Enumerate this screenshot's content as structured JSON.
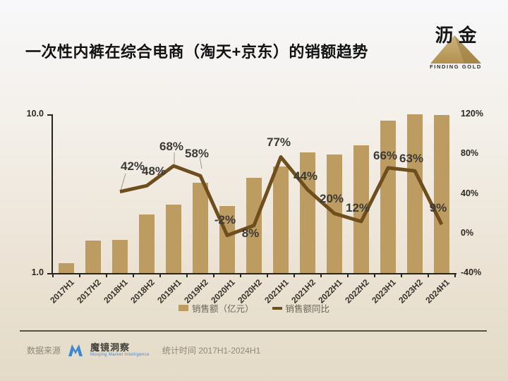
{
  "header": {
    "title": "一次性内裤在综合电商（淘天+京东）的销额趋势",
    "brand": {
      "name": "沥金",
      "tagline": "FINDING GOLD"
    }
  },
  "chart_data": {
    "type": "bar",
    "subtype": "bar+line combo",
    "title": "一次性内裤在综合电商（淘天+京东）的销额趋势",
    "categories": [
      "2017H1",
      "2017H2",
      "2018H1",
      "2018H2",
      "2019H1",
      "2019H2",
      "2020H1",
      "2020H2",
      "2021H1",
      "2021H2",
      "2022H1",
      "2022H2",
      "2023H1",
      "2023H2",
      "2024H1"
    ],
    "series": [
      {
        "name": "销售额（亿元）",
        "type": "bar",
        "axis": "left",
        "color": "#bd9c62",
        "values": [
          1.15,
          1.6,
          1.62,
          2.35,
          2.7,
          3.7,
          2.65,
          4.0,
          4.7,
          5.75,
          5.6,
          6.4,
          9.1,
          10.4,
          9.9
        ]
      },
      {
        "name": "销售额同比",
        "type": "line",
        "axis": "right",
        "color": "#6f4e1e",
        "values": [
          null,
          null,
          42,
          48,
          68,
          58,
          -2,
          8,
          77,
          44,
          20,
          12,
          66,
          63,
          9
        ],
        "labels": [
          null,
          null,
          "42%",
          "48%",
          "68%",
          "58%",
          "-2%",
          "8%",
          "77%",
          "44%",
          "20%",
          "12%",
          "66%",
          "63%",
          "9%"
        ]
      }
    ],
    "left_axis": {
      "scale": "log",
      "min": 1.0,
      "max": 10.0,
      "tick_labels": [
        "10.0",
        "1.0"
      ]
    },
    "right_axis": {
      "min": -40,
      "max": 120,
      "tick_labels": [
        "120%",
        "80%",
        "40%",
        "0%",
        "-40%"
      ]
    },
    "legend": [
      {
        "label": "销售额（亿元）",
        "swatch": "bar"
      },
      {
        "label": "销售额同比",
        "swatch": "line"
      }
    ],
    "grid": false,
    "legend_position": "bottom"
  },
  "footer": {
    "source_label": "数据来源",
    "source_brand": "魔镜洞察",
    "source_brand_sub": "Moojing Market Intelligence",
    "stat_period": "统计时间 2017H1-2024H1"
  },
  "colors": {
    "bar": "#bd9c62",
    "line": "#6f4e1e",
    "axis": "#26241f",
    "background_top": "#f8f8fa",
    "background_bottom": "#e3dbc7",
    "brand_gold": "#bfa065",
    "moojing_blue": "#3d87d6"
  }
}
